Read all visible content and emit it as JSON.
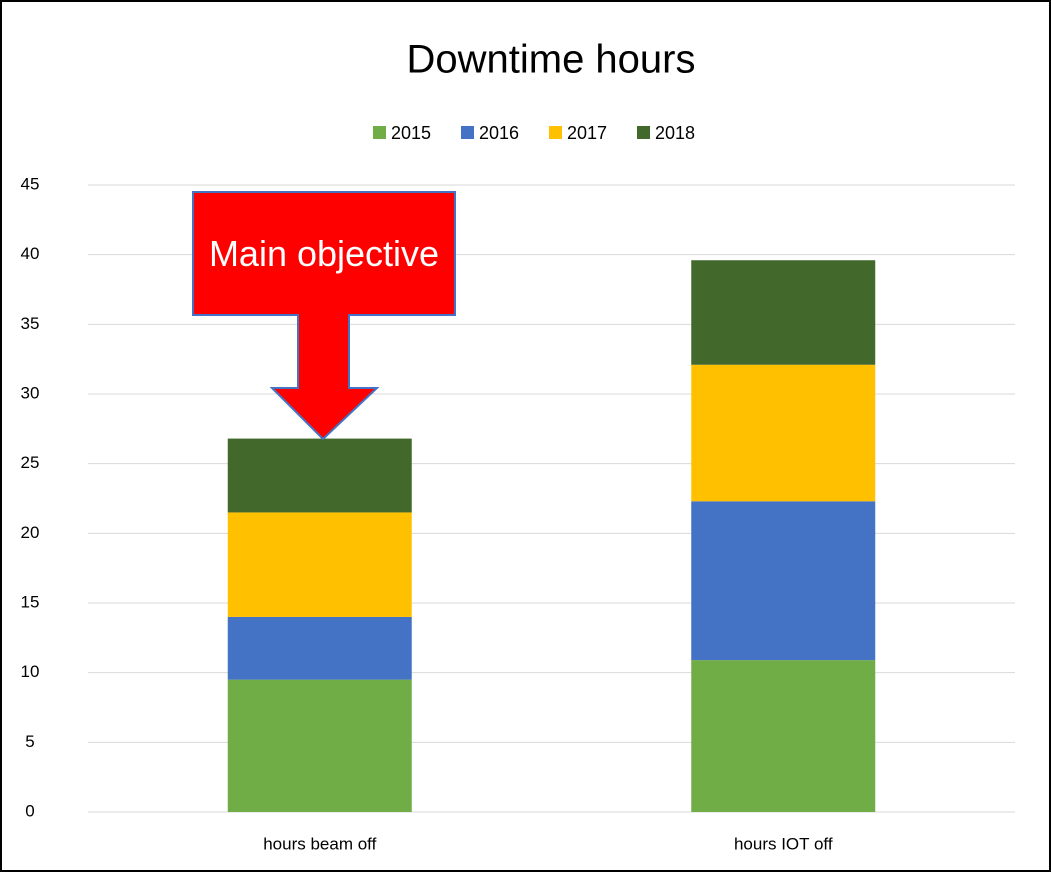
{
  "chart_data": {
    "type": "stacked_bar",
    "title": "Downtime hours",
    "categories": [
      "hours beam off",
      "hours IOT off"
    ],
    "series": [
      {
        "name": "2015",
        "color": "#70ad47",
        "values": [
          9.5,
          10.9
        ]
      },
      {
        "name": "2016",
        "color": "#4472c4",
        "values": [
          4.5,
          11.4
        ]
      },
      {
        "name": "2017",
        "color": "#ffc000",
        "values": [
          7.5,
          9.8
        ]
      },
      {
        "name": "2018",
        "color": "#43682b",
        "values": [
          5.3,
          7.5
        ]
      }
    ],
    "ylim": [
      0,
      45
    ],
    "yticks": [
      0,
      5,
      10,
      15,
      20,
      25,
      30,
      35,
      40,
      45
    ],
    "grid": true,
    "legend": "top",
    "annotation": "Main objective"
  }
}
